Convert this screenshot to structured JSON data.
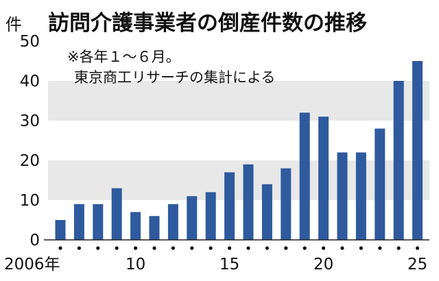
{
  "chart_data": {
    "type": "bar",
    "title": "訪問介護事業者の倒産件数の推移",
    "ylabel": "件",
    "notes": [
      "※各年１～６月。",
      "東京商工リサーチの集計による"
    ],
    "x": [
      2006,
      2007,
      2008,
      2009,
      2010,
      2011,
      2012,
      2013,
      2014,
      2015,
      2016,
      2017,
      2018,
      2019,
      2020,
      2021,
      2022,
      2023,
      2024,
      2025
    ],
    "values": [
      5,
      9,
      9,
      13,
      7,
      6,
      9,
      11,
      12,
      17,
      19,
      14,
      18,
      32,
      31,
      22,
      22,
      28,
      40,
      45
    ],
    "ylim": [
      0,
      50
    ],
    "yticks": [
      0,
      10,
      20,
      30,
      40,
      50
    ],
    "xtick_labels": [
      {
        "year": 2006,
        "label": "2006年"
      },
      {
        "year": 2010,
        "label": "10"
      },
      {
        "year": 2015,
        "label": "15"
      },
      {
        "year": 2020,
        "label": "20"
      },
      {
        "year": 2025,
        "label": "25"
      }
    ],
    "bar_color": "#2f5a9e",
    "band_color": "#e8e8e8",
    "grid": false
  }
}
